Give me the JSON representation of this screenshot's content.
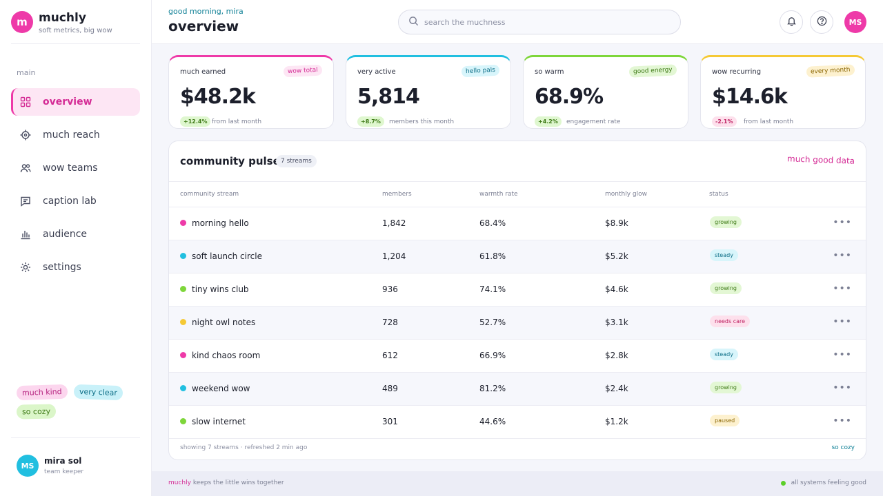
{
  "brand": {
    "logo_letter": "m",
    "name": "muchly",
    "tagline": "soft metrics, big wow"
  },
  "sidebar": {
    "section_label": "main",
    "items": [
      {
        "label": "overview",
        "icon": "grid-icon",
        "active": true
      },
      {
        "label": "much reach",
        "icon": "target-icon"
      },
      {
        "label": "wow teams",
        "icon": "users-icon"
      },
      {
        "label": "caption lab",
        "icon": "message-icon"
      },
      {
        "label": "audience",
        "icon": "bar-chart-icon"
      },
      {
        "label": "settings",
        "icon": "gear-icon"
      }
    ],
    "chips": [
      "much kind",
      "very clear",
      "so cozy"
    ],
    "user": {
      "initials": "MS",
      "name": "mira sol",
      "role": "team keeper"
    }
  },
  "header": {
    "greeting": "good morning, mira",
    "title": "overview",
    "search_placeholder": "search the muchness",
    "avatar_initials": "MS"
  },
  "cards": [
    {
      "label": "much earned",
      "badge": "wow total",
      "value": "$48.2k",
      "delta": "+12.4%",
      "note": "from last month",
      "accent": "#ee3aa8"
    },
    {
      "label": "very active",
      "badge": "hello pals",
      "value": "5,814",
      "delta": "+8.7%",
      "note": "members this month",
      "accent": "#21bfe0"
    },
    {
      "label": "so warm",
      "badge": "good energy",
      "value": "68.9%",
      "delta": "+4.2%",
      "note": "engagement rate",
      "accent": "#7ed63a"
    },
    {
      "label": "wow recurring",
      "badge": "every month",
      "value": "$14.6k",
      "delta": "-2.1%",
      "note": "from last month",
      "accent": "#f5c935"
    }
  ],
  "table": {
    "title": "community pulse",
    "count": "7 streams",
    "tag": "much good data",
    "columns": [
      "community stream",
      "members",
      "warmth rate",
      "monthly glow",
      "status"
    ],
    "rows": [
      {
        "name": "morning hello",
        "members": "1,842",
        "warmth": "68.4%",
        "glow": "$8.9k",
        "status": "growing",
        "color": "#ee3aa8"
      },
      {
        "name": "soft launch circle",
        "members": "1,204",
        "warmth": "61.8%",
        "glow": "$5.2k",
        "status": "steady",
        "color": "#21bfe0"
      },
      {
        "name": "tiny wins club",
        "members": "936",
        "warmth": "74.1%",
        "glow": "$4.6k",
        "status": "growing",
        "color": "#7ed63a"
      },
      {
        "name": "night owl notes",
        "members": "728",
        "warmth": "52.7%",
        "glow": "$3.1k",
        "status": "needs care",
        "color": "#f5c935"
      },
      {
        "name": "kind chaos room",
        "members": "612",
        "warmth": "66.9%",
        "glow": "$2.8k",
        "status": "steady",
        "color": "#ee3aa8"
      },
      {
        "name": "weekend wow",
        "members": "489",
        "warmth": "81.2%",
        "glow": "$2.4k",
        "status": "growing",
        "color": "#21bfe0"
      },
      {
        "name": "slow internet",
        "members": "301",
        "warmth": "44.6%",
        "glow": "$1.2k",
        "status": "paused",
        "color": "#7ed63a"
      }
    ],
    "footer_note": "showing 7 streams · refreshed 2 min ago",
    "footer_tag": "so cozy"
  },
  "footer": {
    "brand": "muchly",
    "text": "keeps the little wins together",
    "status": "all systems feeling good"
  }
}
